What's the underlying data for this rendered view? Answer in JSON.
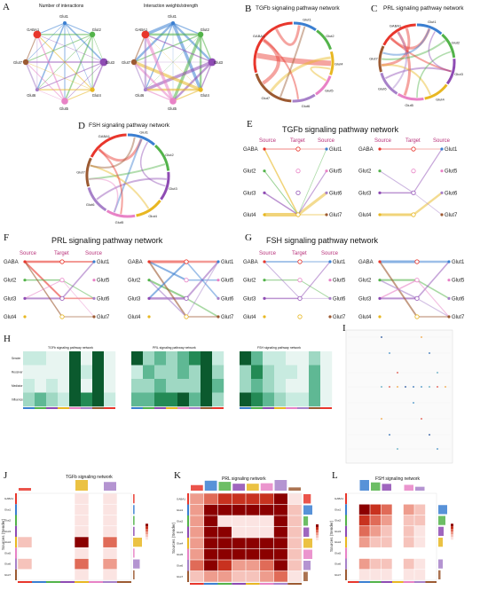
{
  "panels": {
    "A": {
      "letter": "A",
      "left_title": "Number of interactions",
      "right_title": "Interaction weights/strength"
    },
    "B": {
      "letter": "B",
      "title": "TGFb signaling pathway network"
    },
    "C": {
      "letter": "C",
      "title": "PRL signaling pathway network"
    },
    "D": {
      "letter": "D",
      "title": "FSH signaling pathway network"
    },
    "E": {
      "letter": "E",
      "title": "TGFb signaling pathway network"
    },
    "F": {
      "letter": "F",
      "title": "PRL signaling pathway network"
    },
    "G": {
      "letter": "G",
      "title": "FSH signaling pathway network"
    },
    "H": {
      "letter": "H",
      "sub1": "TGFb signaling pathway network",
      "sub2": "PRL signaling pathway network",
      "sub3": "FSH signaling pathway network"
    },
    "I": {
      "letter": "I"
    },
    "J": {
      "letter": "J",
      "title": "TGFb signaling network"
    },
    "K": {
      "letter": "K",
      "title": "PRL signaling network"
    },
    "L": {
      "letter": "L",
      "title": "FSH signaling network"
    }
  },
  "cell_groups": [
    "GABA",
    "Glut1",
    "Glut2",
    "Glut3",
    "Glut4",
    "Glut5",
    "Glut6",
    "Glut7"
  ],
  "chord_labels": [
    "Glut1",
    "Glut2",
    "Glut3",
    "Glut4",
    "Glut5",
    "Glut6",
    "Glut7",
    "GABA1"
  ],
  "hier": {
    "source": "Source",
    "target": "Target"
  },
  "hier_left": [
    "GABA",
    "Glut2",
    "Glut3",
    "Glut4"
  ],
  "hier_right": [
    "Glut1",
    "Glut5",
    "Glut6",
    "Glut7"
  ],
  "heat_rows": [
    "Sender",
    "Receiver",
    "Mediator",
    "Influencer"
  ],
  "y_axis_label": "Sources (Sender)",
  "colors": {
    "GABA": "#e8362c",
    "Glut1": "#3b7fd1",
    "Glut2": "#53b34a",
    "Glut3": "#8e4bb3",
    "Glut4": "#e8b722",
    "Glut5": "#e882c6",
    "Glut6": "#a781c9",
    "Glut7": "#9c5a32"
  }
}
